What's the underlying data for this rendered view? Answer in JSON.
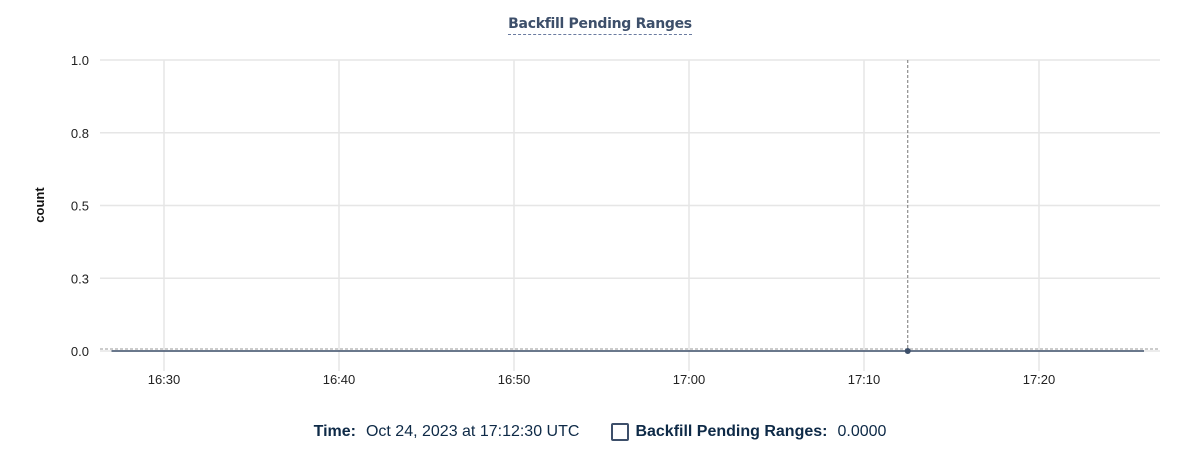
{
  "chart_data": {
    "type": "line",
    "title": "Backfill Pending Ranges",
    "ylabel": "count",
    "xlabel": "",
    "ylim": [
      0,
      1
    ],
    "yticks": [
      0,
      0.25,
      0.5,
      0.75,
      1
    ],
    "ytick_labels": [
      "0.0",
      "0.3",
      "0.5",
      "0.8",
      "1.0"
    ],
    "xlim": [
      "16:26:45",
      "17:27:30"
    ],
    "xticks": [
      "16:30",
      "16:40",
      "16:50",
      "17:00",
      "17:10",
      "17:20"
    ],
    "grid": true,
    "series": [
      {
        "name": "Backfill Pending Ranges",
        "color": "#3d4f6a",
        "x": [
          "16:27:00",
          "16:40:00",
          "16:50:00",
          "17:00:00",
          "17:12:30",
          "17:26:00"
        ],
        "values": [
          0,
          0,
          0,
          0,
          0,
          0
        ]
      }
    ],
    "cursor": {
      "x": "17:12:30",
      "y": 0
    }
  },
  "legend": {
    "time_label": "Time:",
    "time_value": "Oct 24, 2023 at 17:12:30 UTC",
    "series_label": "Backfill Pending Ranges:",
    "series_value": "0.0000"
  }
}
